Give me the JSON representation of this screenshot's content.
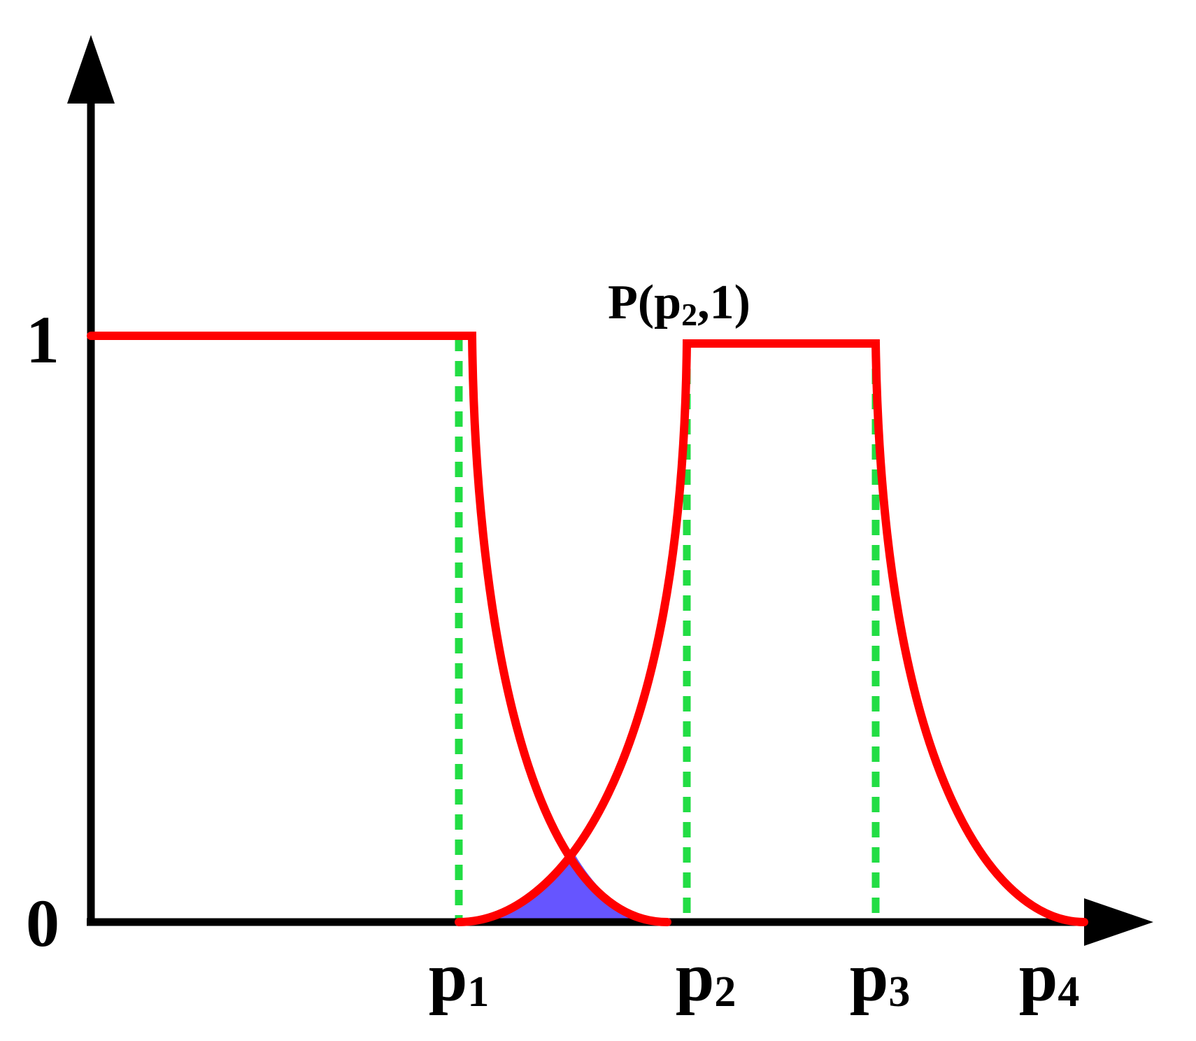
{
  "axis_labels": {
    "y_top": "1",
    "y_bottom": "0"
  },
  "x_labels": [
    {
      "base": "p",
      "sub": "1"
    },
    {
      "base": "p",
      "sub": "2"
    },
    {
      "base": "p",
      "sub": "3"
    },
    {
      "base": "p",
      "sub": "4"
    }
  ],
  "annotation": {
    "before": "P(p",
    "sub": "2",
    "after": ",1)"
  }
}
